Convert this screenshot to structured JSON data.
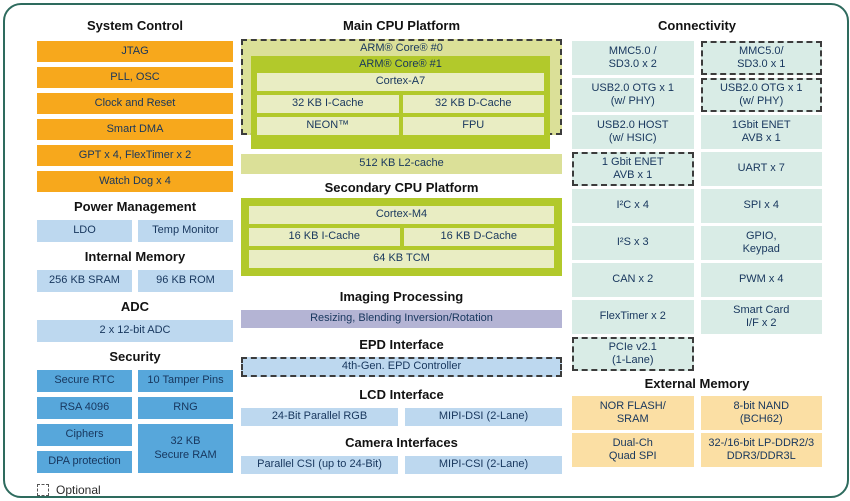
{
  "diagram": {
    "legend_optional": "Optional",
    "left": {
      "system_control": {
        "title": "System Control",
        "items": [
          "JTAG",
          "PLL, OSC",
          "Clock and Reset",
          "Smart DMA",
          "GPT x 4, FlexTimer x 2",
          "Watch Dog x 4"
        ]
      },
      "power_management": {
        "title": "Power Management",
        "items": [
          "LDO",
          "Temp Monitor"
        ]
      },
      "internal_memory": {
        "title": "Internal Memory",
        "items": [
          "256 KB SRAM",
          "96 KB ROM"
        ]
      },
      "adc": {
        "title": "ADC",
        "items": [
          "2 x 12-bit ADC"
        ]
      },
      "security": {
        "title": "Security",
        "items": [
          "Secure RTC",
          "10 Tamper Pins",
          "RSA 4096",
          "RNG",
          "Ciphers",
          "32 KB\nSecure RAM",
          "DPA protection"
        ]
      }
    },
    "middle": {
      "main_cpu": {
        "title": "Main CPU Platform",
        "core0": "ARM® Core® #0",
        "core1": "ARM® Core® #1",
        "cortex": "Cortex-A7",
        "icache": "32 KB I-Cache",
        "dcache": "32 KB D-Cache",
        "neon": "NEON™",
        "fpu": "FPU",
        "l2": "512 KB L2-cache"
      },
      "secondary_cpu": {
        "title": "Secondary CPU Platform",
        "cortex": "Cortex-M4",
        "icache": "16 KB I-Cache",
        "dcache": "16 KB D-Cache",
        "tcm": "64 KB TCM"
      },
      "imaging": {
        "title": "Imaging Processing",
        "item": "Resizing, Blending Inversion/Rotation"
      },
      "epd": {
        "title": "EPD Interface",
        "item": "4th-Gen. EPD Controller"
      },
      "lcd": {
        "title": "LCD Interface",
        "items": [
          "24-Bit Parallel RGB",
          "MIPI-DSI (2-Lane)"
        ]
      },
      "camera": {
        "title": "Camera Interfaces",
        "items": [
          "Parallel CSI (up to 24-Bit)",
          "MIPI-CSI (2-Lane)"
        ]
      }
    },
    "right": {
      "connectivity": {
        "title": "Connectivity",
        "cells": [
          {
            "text": "MMC5.0 /\nSD3.0 x 2",
            "optional": false
          },
          {
            "text": "MMC5.0/\nSD3.0 x 1",
            "optional": true
          },
          {
            "text": "USB2.0 OTG x 1\n(w/ PHY)",
            "optional": false
          },
          {
            "text": "USB2.0 OTG x 1\n(w/ PHY)",
            "optional": true
          },
          {
            "text": "USB2.0 HOST\n(w/ HSIC)",
            "optional": false
          },
          {
            "text": "1Gbit ENET\nAVB x 1",
            "optional": false
          },
          {
            "text": "1 Gbit ENET\nAVB x 1",
            "optional": true
          },
          {
            "text": "UART x 7",
            "optional": false
          },
          {
            "text": "I²C x 4",
            "optional": false
          },
          {
            "text": "SPI x 4",
            "optional": false
          },
          {
            "text": "I²S x 3",
            "optional": false
          },
          {
            "text": "GPIO,\nKeypad",
            "optional": false
          },
          {
            "text": "CAN x 2",
            "optional": false
          },
          {
            "text": "PWM x 4",
            "optional": false
          },
          {
            "text": "FlexTimer x 2",
            "optional": false
          },
          {
            "text": "Smart Card\nI/F x 2",
            "optional": false
          },
          {
            "text": "PCIe v2.1\n(1-Lane)",
            "optional": true
          }
        ]
      },
      "external_memory": {
        "title": "External Memory",
        "items": [
          "NOR FLASH/\nSRAM",
          "8-bit NAND\n(BCH62)",
          "Dual-Ch\nQuad SPI",
          "32-/16-bit LP-DDR2/3\nDDR3/DDR3L"
        ]
      }
    }
  },
  "colors": {
    "accent_orange": "#F7A81C",
    "light_blue": "#BDD8EF",
    "security_blue": "#57A7DB",
    "mint": "#D9ECE6",
    "tan": "#FBDFA4",
    "lavender": "#B4B4D4",
    "leaf_green": "#B2C92B",
    "pale_green": "#E9EDC3",
    "olive": "#DBE098",
    "border_teal": "#2E6B5E"
  }
}
